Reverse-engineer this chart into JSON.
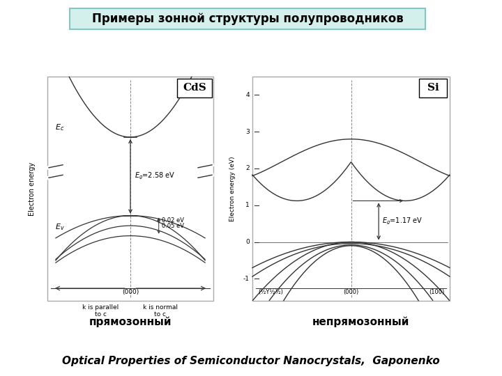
{
  "title": "Примеры зонной структуры полупроводников",
  "title_bg": "#d4f0ec",
  "title_border": "#80c8c0",
  "label_direct": "прямозонный",
  "label_indirect": "непрямозонный",
  "citation": "Optical Properties of Semiconductor Nanocrystals,  Gaponenko",
  "bg_color": "#ffffff",
  "diagram_bg": "#ffffff",
  "cds_label": "CdS",
  "si_label": "Si",
  "yaxis_cds": "Electron energy",
  "yaxis_si": "Electron energy (eV)"
}
